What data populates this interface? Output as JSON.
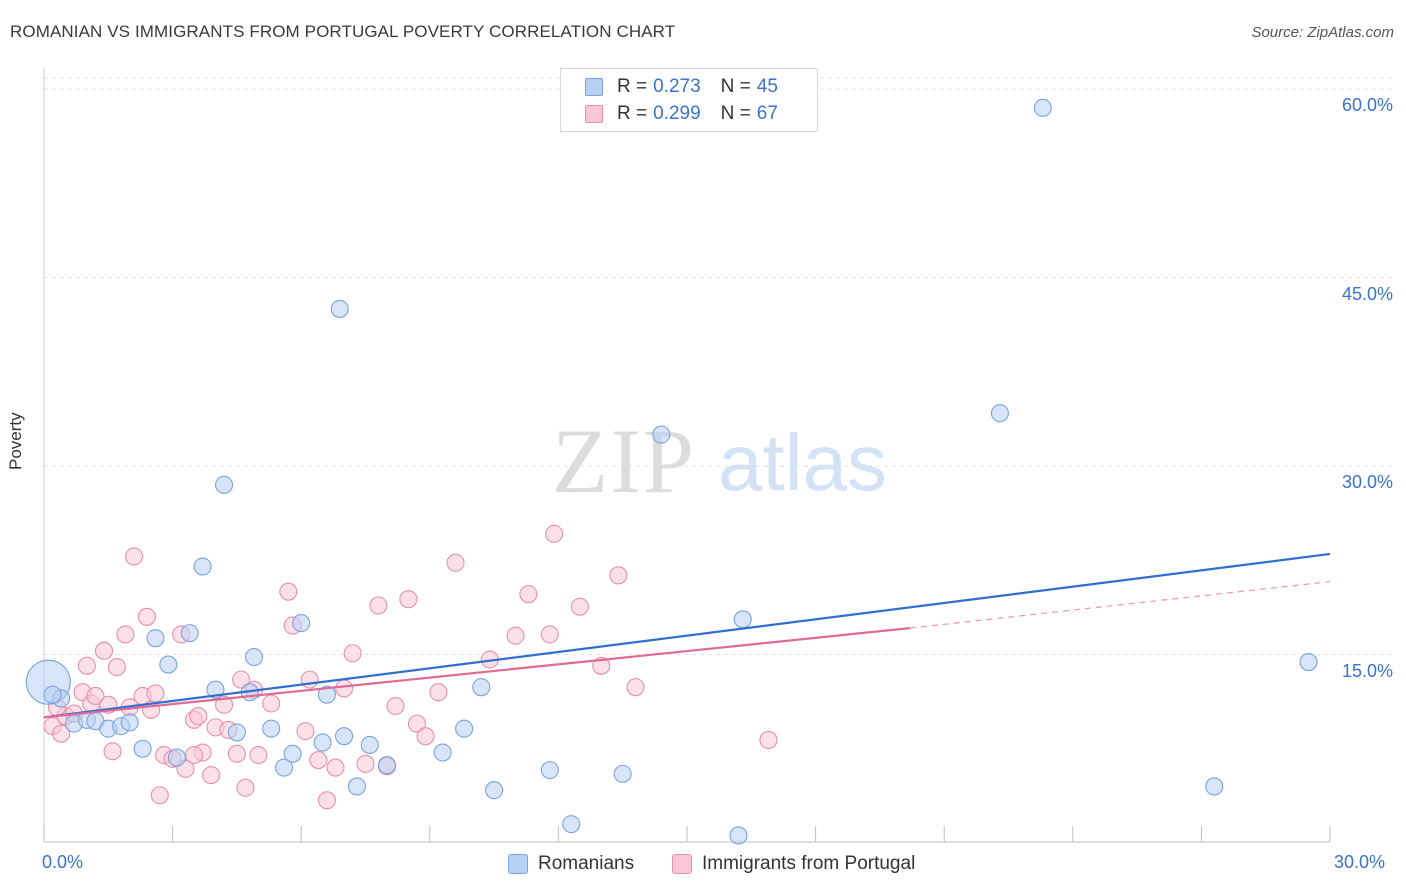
{
  "title": "ROMANIAN VS IMMIGRANTS FROM PORTUGAL POVERTY CORRELATION CHART",
  "source": "Source: ZipAtlas.com",
  "watermark": {
    "zip": "ZIP",
    "atlas": "atlas"
  },
  "legend": {
    "r_label": "R =",
    "n_label": "N =",
    "series": [
      {
        "name": "Romanians",
        "r": "0.273",
        "n": "45",
        "fill": "#b8d0f2",
        "stroke": "#7aa3de"
      },
      {
        "name": "Immigrants from Portugal",
        "r": "0.299",
        "n": "67",
        "fill": "#f9c6d5",
        "stroke": "#e890ac"
      }
    ]
  },
  "colors": {
    "blue_line": "#2f6fcf",
    "pink_line": "#e06a96",
    "tick_text": "#3b73c8"
  },
  "chart_data": {
    "type": "scatter",
    "title": "ROMANIAN VS IMMIGRANTS FROM PORTUGAL POVERTY CORRELATION CHART",
    "xlabel": "",
    "ylabel": "Poverty",
    "xlim": [
      0,
      30
    ],
    "ylim": [
      0,
      62
    ],
    "x_tick_labels": [
      "0.0%",
      "30.0%"
    ],
    "y_ticks": [
      15,
      30,
      45,
      60
    ],
    "y_tick_labels": [
      "15.0%",
      "30.0%",
      "45.0%",
      "60.0%"
    ],
    "grid": "horizontal dashed",
    "legend_position": "top-center",
    "series": [
      {
        "name": "Romanians",
        "color": "#7aa3de",
        "points": [
          [
            0.1,
            12.8
          ],
          [
            0.4,
            11.5
          ],
          [
            0.7,
            9.5
          ],
          [
            1.0,
            9.8
          ],
          [
            1.2,
            9.7
          ],
          [
            1.5,
            9.1
          ],
          [
            1.8,
            9.3
          ],
          [
            2.0,
            9.6
          ],
          [
            2.3,
            7.5
          ],
          [
            2.6,
            16.3
          ],
          [
            2.9,
            14.2
          ],
          [
            3.1,
            6.8
          ],
          [
            3.4,
            16.7
          ],
          [
            3.7,
            22.0
          ],
          [
            4.0,
            12.2
          ],
          [
            4.2,
            28.5
          ],
          [
            4.5,
            8.8
          ],
          [
            4.8,
            12.0
          ],
          [
            4.9,
            14.8
          ],
          [
            5.3,
            9.1
          ],
          [
            5.6,
            6.0
          ],
          [
            5.8,
            7.1
          ],
          [
            6.0,
            17.5
          ],
          [
            6.5,
            8.0
          ],
          [
            6.6,
            11.8
          ],
          [
            6.9,
            42.5
          ],
          [
            7.0,
            8.5
          ],
          [
            7.3,
            4.5
          ],
          [
            7.6,
            7.8
          ],
          [
            8.0,
            6.2
          ],
          [
            9.3,
            7.2
          ],
          [
            9.8,
            9.1
          ],
          [
            10.2,
            12.4
          ],
          [
            10.5,
            4.2
          ],
          [
            11.8,
            5.8
          ],
          [
            12.3,
            1.5
          ],
          [
            13.5,
            5.5
          ],
          [
            14.4,
            32.5
          ],
          [
            16.2,
            0.6
          ],
          [
            16.3,
            17.8
          ],
          [
            22.3,
            34.2
          ],
          [
            23.3,
            58.5
          ],
          [
            27.3,
            4.5
          ],
          [
            29.5,
            14.4
          ],
          [
            0.2,
            11.8
          ]
        ],
        "trend": [
          [
            0,
            10.0
          ],
          [
            30,
            23.0
          ]
        ]
      },
      {
        "name": "Immigrants from Portugal",
        "color": "#e890ac",
        "points": [
          [
            0.2,
            9.3
          ],
          [
            0.4,
            8.7
          ],
          [
            0.5,
            10.1
          ],
          [
            0.7,
            10.3
          ],
          [
            0.9,
            12.0
          ],
          [
            1.0,
            14.1
          ],
          [
            1.1,
            11.1
          ],
          [
            1.2,
            11.7
          ],
          [
            1.4,
            15.3
          ],
          [
            1.5,
            11.0
          ],
          [
            1.6,
            7.3
          ],
          [
            1.7,
            14.0
          ],
          [
            1.9,
            16.6
          ],
          [
            2.0,
            10.8
          ],
          [
            2.1,
            22.8
          ],
          [
            2.3,
            11.7
          ],
          [
            2.4,
            18.0
          ],
          [
            2.5,
            10.6
          ],
          [
            2.6,
            11.9
          ],
          [
            2.7,
            3.8
          ],
          [
            2.8,
            7.0
          ],
          [
            3.0,
            6.7
          ],
          [
            3.2,
            16.6
          ],
          [
            3.3,
            5.9
          ],
          [
            3.5,
            9.8
          ],
          [
            3.6,
            10.1
          ],
          [
            3.7,
            7.2
          ],
          [
            3.9,
            5.4
          ],
          [
            4.0,
            9.2
          ],
          [
            4.2,
            11.0
          ],
          [
            4.3,
            9.0
          ],
          [
            4.5,
            7.1
          ],
          [
            4.6,
            13.0
          ],
          [
            4.7,
            4.4
          ],
          [
            4.9,
            12.2
          ],
          [
            5.0,
            7.0
          ],
          [
            5.3,
            11.1
          ],
          [
            5.7,
            20.0
          ],
          [
            5.8,
            17.3
          ],
          [
            6.1,
            8.9
          ],
          [
            6.2,
            13.0
          ],
          [
            6.4,
            6.6
          ],
          [
            6.6,
            3.4
          ],
          [
            6.8,
            6.0
          ],
          [
            7.0,
            12.3
          ],
          [
            7.2,
            15.1
          ],
          [
            7.5,
            6.3
          ],
          [
            7.8,
            18.9
          ],
          [
            8.0,
            6.1
          ],
          [
            8.2,
            10.9
          ],
          [
            8.5,
            19.4
          ],
          [
            8.7,
            9.5
          ],
          [
            8.9,
            8.5
          ],
          [
            9.2,
            12.0
          ],
          [
            9.6,
            22.3
          ],
          [
            10.4,
            14.6
          ],
          [
            11.0,
            16.5
          ],
          [
            11.3,
            19.8
          ],
          [
            11.8,
            16.6
          ],
          [
            11.9,
            24.6
          ],
          [
            12.5,
            18.8
          ],
          [
            13.0,
            14.1
          ],
          [
            13.4,
            21.3
          ],
          [
            13.8,
            12.4
          ],
          [
            16.9,
            8.2
          ],
          [
            0.3,
            10.8
          ],
          [
            3.5,
            7.0
          ]
        ],
        "trend": [
          [
            0,
            10.0
          ],
          [
            20.2,
            17.1
          ]
        ],
        "trend_dashed": [
          [
            20.2,
            17.1
          ],
          [
            30,
            20.8
          ]
        ]
      }
    ]
  }
}
